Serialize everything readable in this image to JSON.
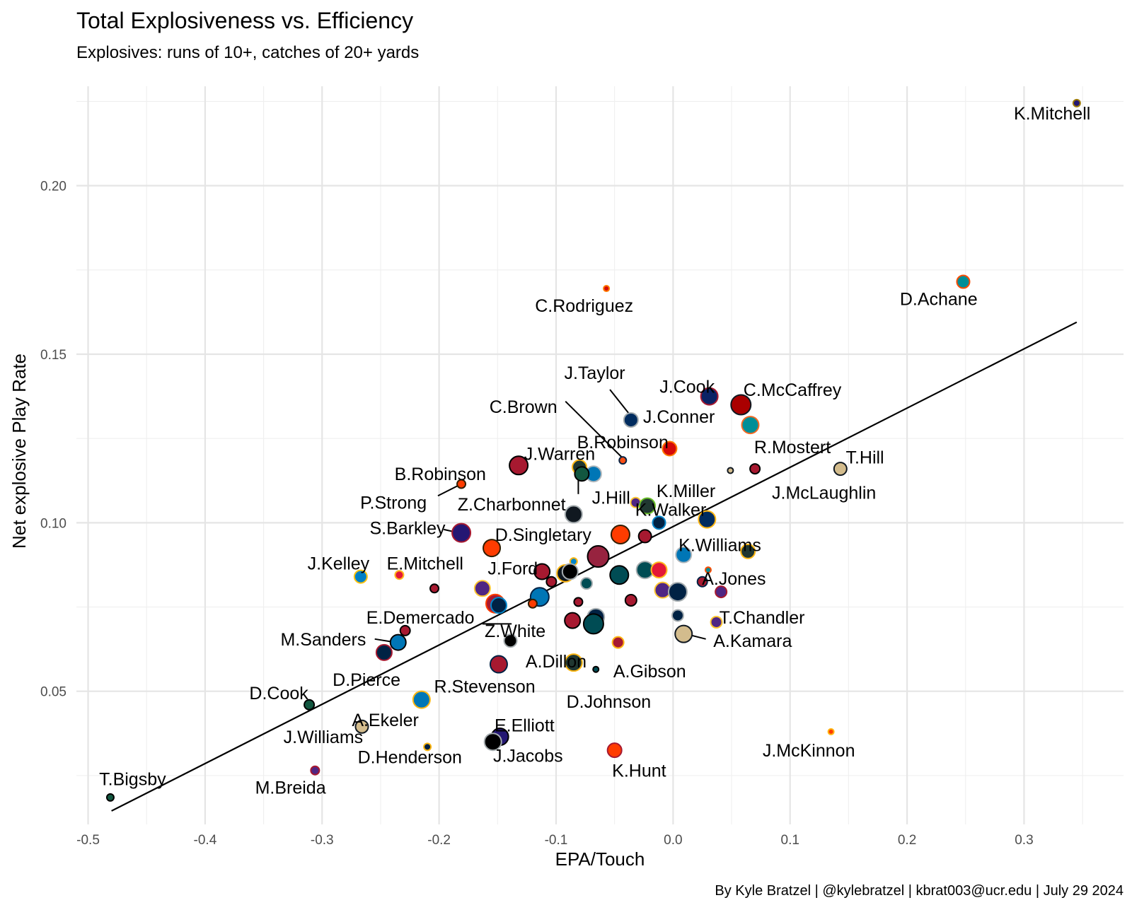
{
  "chart_data": {
    "type": "scatter",
    "title": "Total Explosiveness vs. Efficiency",
    "subtitle": "Explosives: runs of 10+, catches of 20+ yards",
    "xlabel": "EPA/Touch",
    "ylabel": "Net explosive Play Rate",
    "caption": "By Kyle Bratzel | @kylebratzel | kbrat003@ucr.edu | July 29 2024",
    "xlim": [
      -0.51,
      0.385
    ],
    "ylim": [
      0.0105,
      0.2295
    ],
    "x_ticks": [
      -0.5,
      -0.4,
      -0.3,
      -0.2,
      -0.1,
      0.0,
      0.1,
      0.2,
      0.3
    ],
    "x_tick_labels": [
      "-0.5",
      "-0.4",
      "-0.3",
      "-0.2",
      "-0.1",
      "0.0",
      "0.1",
      "0.2",
      "0.3"
    ],
    "y_ticks": [
      0.05,
      0.1,
      0.15,
      0.2
    ],
    "y_tick_labels": [
      "0.05",
      "0.10",
      "0.15",
      "0.20"
    ],
    "grid": true,
    "trend_line": {
      "x": [
        -0.48,
        0.345
      ],
      "y": [
        0.0145,
        0.1595
      ]
    },
    "points": [
      {
        "x": 0.345,
        "y": 0.2245,
        "r": 5,
        "fill": "#241773",
        "stroke": "#9E7C0C",
        "label": "K.Mitchell",
        "lx": 0.324,
        "ly": 0.2215
      },
      {
        "x": 0.248,
        "y": 0.1715,
        "r": 9,
        "fill": "#008E97",
        "stroke": "#FC4C02",
        "label": "D.Achane",
        "lx": 0.227,
        "ly": 0.1665
      },
      {
        "x": -0.057,
        "y": 0.1695,
        "r": 4,
        "fill": "#D50A0A",
        "stroke": "#FF7900",
        "label": "C.Rodriguez",
        "lx": -0.076,
        "ly": 0.1645
      },
      {
        "x": 0.031,
        "y": 0.1375,
        "r": 12,
        "fill": "#0B2265",
        "stroke": "#A71930",
        "label": "J.Cook",
        "lx": 0.012,
        "ly": 0.1405
      },
      {
        "x": 0.058,
        "y": 0.135,
        "r": 14,
        "fill": "#AA0000",
        "stroke": "#101820",
        "label": "C.McCaffrey",
        "lx": 0.102,
        "ly": 0.1395
      },
      {
        "x": 0.066,
        "y": 0.129,
        "r": 12,
        "fill": "#008E97",
        "stroke": "#F26A24",
        "label": "J.Conner",
        "lx": 0.005,
        "ly": 0.1315
      },
      {
        "x": -0.036,
        "y": 0.1305,
        "r": 10,
        "fill": "#002C5F",
        "stroke": "#A2AAAD",
        "label": "J.Taylor",
        "lx": -0.067,
        "ly": 0.1445,
        "line": [
          -0.054,
          0.1395,
          -0.038,
          0.1325
        ]
      },
      {
        "x": -0.043,
        "y": 0.1185,
        "r": 5,
        "fill": "#FB4F14",
        "stroke": "#0A2343",
        "label": "C.Brown",
        "lx": -0.128,
        "ly": 0.1345,
        "line": [
          -0.092,
          0.136,
          -0.044,
          0.1195
        ]
      },
      {
        "x": -0.003,
        "y": 0.122,
        "r": 10,
        "fill": "#D50A0A",
        "stroke": "#FF7900",
        "label": "B.Robinson",
        "lx": -0.043,
        "ly": 0.124
      },
      {
        "x": -0.132,
        "y": 0.117,
        "r": 13,
        "fill": "#A71930",
        "stroke": "#000000",
        "label": "J.Warren",
        "lx": -0.097,
        "ly": 0.1205
      },
      {
        "x": -0.08,
        "y": 0.1165,
        "r": 10,
        "fill": "#203731",
        "stroke": "#FFB612"
      },
      {
        "x": -0.068,
        "y": 0.1145,
        "r": 11,
        "fill": "#0076B6",
        "stroke": "#B0B7BC"
      },
      {
        "x": -0.078,
        "y": 0.1145,
        "r": 10,
        "fill": "#125740",
        "stroke": "#000000",
        "label": "J.Hill",
        "lx": -0.053,
        "ly": 0.1075,
        "line": [
          -0.081,
          0.1085,
          -0.081,
          0.1135
        ]
      },
      {
        "x": -0.181,
        "y": 0.1115,
        "r": 6,
        "fill": "#FF3C00",
        "stroke": "#311D00",
        "label": "B.Robinson",
        "lx": -0.199,
        "ly": 0.1145
      },
      {
        "x": 0.049,
        "y": 0.1155,
        "r": 4,
        "fill": "#D3BC8D",
        "stroke": "#101820",
        "label": "R.Mostert",
        "lx": 0.102,
        "ly": 0.1225
      },
      {
        "x": 0.07,
        "y": 0.116,
        "r": 7,
        "fill": "#A71930",
        "stroke": "#000000"
      },
      {
        "x": 0.143,
        "y": 0.116,
        "r": 9,
        "fill": "#D3BC8D",
        "stroke": "#101820",
        "label": "T.Hill",
        "lx": 0.164,
        "ly": 0.1195
      },
      {
        "x": null,
        "y": null,
        "r": 0,
        "fill": "#000000",
        "stroke": "#000000",
        "label": "P.Strong",
        "lx": -0.239,
        "ly": 0.106,
        "line": [
          -0.201,
          0.108,
          -0.181,
          0.1115
        ]
      },
      {
        "x": null,
        "y": null,
        "r": 0,
        "fill": "#000000",
        "stroke": "#000000",
        "label": "K.Miller",
        "lx": 0.011,
        "ly": 0.1095
      },
      {
        "x": null,
        "y": null,
        "r": 0,
        "fill": "#000000",
        "stroke": "#000000",
        "label": "J.McLaughlin",
        "lx": 0.129,
        "ly": 0.109
      },
      {
        "x": -0.085,
        "y": 0.1025,
        "r": 12,
        "fill": "#101820",
        "stroke": "#A5ACAF",
        "label": "Z.Charbonnet",
        "lx": -0.138,
        "ly": 0.1055
      },
      {
        "x": -0.032,
        "y": 0.106,
        "r": 7,
        "fill": "#4F2683",
        "stroke": "#FFC62F"
      },
      {
        "x": -0.022,
        "y": 0.105,
        "r": 11,
        "fill": "#203731",
        "stroke": "#69BE28",
        "label": "K.Walker",
        "lx": -0.002,
        "ly": 0.104
      },
      {
        "x": -0.012,
        "y": 0.1,
        "r": 9,
        "fill": "#002244",
        "stroke": "#0085CA"
      },
      {
        "x": 0.029,
        "y": 0.101,
        "r": 12,
        "fill": "#002C5F",
        "stroke": "#FFB612"
      },
      {
        "x": -0.181,
        "y": 0.097,
        "r": 13,
        "fill": "#241773",
        "stroke": "#A71930",
        "label": "S.Barkley",
        "lx": -0.227,
        "ly": 0.0985,
        "line": [
          -0.196,
          0.098,
          -0.183,
          0.097
        ]
      },
      {
        "x": -0.045,
        "y": 0.0965,
        "r": 13,
        "fill": "#FF3C00",
        "stroke": "#311D00",
        "label": "D.Singletary",
        "lx": -0.111,
        "ly": 0.0965
      },
      {
        "x": -0.024,
        "y": 0.096,
        "r": 9,
        "fill": "#A71930",
        "stroke": "#000000"
      },
      {
        "x": -0.155,
        "y": 0.0925,
        "r": 12,
        "fill": "#FF3C00",
        "stroke": "#311D00"
      },
      {
        "x": 0.009,
        "y": 0.0905,
        "r": 11,
        "fill": "#0076B6",
        "stroke": "#B0B7BC",
        "label": "K.Williams",
        "lx": 0.04,
        "ly": 0.0935
      },
      {
        "x": 0.064,
        "y": 0.0915,
        "r": 10,
        "fill": "#203731",
        "stroke": "#FFB612"
      },
      {
        "x": -0.064,
        "y": 0.09,
        "r": 15,
        "fill": "#97233F",
        "stroke": "#000000"
      },
      {
        "x": -0.085,
        "y": 0.0885,
        "r": 5,
        "fill": "#0085CA",
        "stroke": "#FFB612"
      },
      {
        "x": -0.267,
        "y": 0.084,
        "r": 9,
        "fill": "#0080C6",
        "stroke": "#FFC20E",
        "label": "J.Kelley",
        "lx": -0.286,
        "ly": 0.088
      },
      {
        "x": -0.234,
        "y": 0.0845,
        "r": 6,
        "fill": "#E31837",
        "stroke": "#FFB81C",
        "label": "E.Mitchell",
        "lx": -0.212,
        "ly": 0.088
      },
      {
        "x": -0.112,
        "y": 0.0855,
        "r": 11,
        "fill": "#A71930",
        "stroke": "#000000",
        "label": "J.Ford",
        "lx": -0.137,
        "ly": 0.0865
      },
      {
        "x": -0.104,
        "y": 0.0825,
        "r": 7,
        "fill": "#A71930",
        "stroke": "#000000"
      },
      {
        "x": -0.092,
        "y": 0.085,
        "r": 12,
        "fill": "#101820",
        "stroke": "#FFB612"
      },
      {
        "x": -0.088,
        "y": 0.0855,
        "r": 11,
        "fill": "#000000",
        "stroke": "#A5ACAF"
      },
      {
        "x": -0.046,
        "y": 0.0845,
        "r": 13,
        "fill": "#004C54",
        "stroke": "#000000"
      },
      {
        "x": -0.024,
        "y": 0.086,
        "r": 12,
        "fill": "#004C54",
        "stroke": "#A5ACAF"
      },
      {
        "x": -0.012,
        "y": 0.086,
        "r": 11,
        "fill": "#E31837",
        "stroke": "#FFB81C"
      },
      {
        "x": 0.03,
        "y": 0.086,
        "r": 4,
        "fill": "#008E97",
        "stroke": "#FC4C02",
        "label": "A.Jones",
        "lx": 0.052,
        "ly": 0.0835
      },
      {
        "x": -0.074,
        "y": 0.082,
        "r": 8,
        "fill": "#004C54",
        "stroke": "#A5ACAF"
      },
      {
        "x": 0.025,
        "y": 0.0825,
        "r": 7,
        "fill": "#A71930",
        "stroke": "#002244"
      },
      {
        "x": -0.204,
        "y": 0.0805,
        "r": 6,
        "fill": "#A71930",
        "stroke": "#000000"
      },
      {
        "x": -0.163,
        "y": 0.0805,
        "r": 11,
        "fill": "#4F2683",
        "stroke": "#FFC62F"
      },
      {
        "x": -0.012,
        "y": 0.0805,
        "r": 4,
        "fill": "#FFB612",
        "stroke": "#101820"
      },
      {
        "x": -0.009,
        "y": 0.08,
        "r": 11,
        "fill": "#4F2683",
        "stroke": "#FFC62F"
      },
      {
        "x": 0.004,
        "y": 0.0795,
        "r": 13,
        "fill": "#002244",
        "stroke": "#A5ACAF"
      },
      {
        "x": 0.041,
        "y": 0.0795,
        "r": 8,
        "fill": "#4F2683",
        "stroke": "#A71930"
      },
      {
        "x": -0.114,
        "y": 0.078,
        "r": 13,
        "fill": "#0076B6",
        "stroke": "#002244"
      },
      {
        "x": -0.152,
        "y": 0.076,
        "r": 13,
        "fill": "#A71930",
        "stroke": "#FF3C00"
      },
      {
        "x": -0.149,
        "y": 0.0755,
        "r": 11,
        "fill": "#002244",
        "stroke": "#0085CA"
      },
      {
        "x": -0.12,
        "y": 0.076,
        "r": 6,
        "fill": "#FF3C00",
        "stroke": "#311D00"
      },
      {
        "x": -0.081,
        "y": 0.0765,
        "r": 6,
        "fill": "#A71930",
        "stroke": "#000000"
      },
      {
        "x": -0.036,
        "y": 0.077,
        "r": 8,
        "fill": "#A71930",
        "stroke": "#000000"
      },
      {
        "x": null,
        "y": null,
        "r": 0,
        "fill": "#000000",
        "stroke": "#000000",
        "label": "E.Demercado",
        "lx": -0.216,
        "ly": 0.072
      },
      {
        "x": null,
        "y": null,
        "r": 0,
        "fill": "#000000",
        "stroke": "#000000",
        "label": "Z.White",
        "lx": -0.135,
        "ly": 0.068,
        "line": [
          -0.163,
          0.07,
          -0.138,
          0.07
        ]
      },
      {
        "x": -0.086,
        "y": 0.071,
        "r": 11,
        "fill": "#A71930",
        "stroke": "#000000"
      },
      {
        "x": -0.066,
        "y": 0.072,
        "r": 12,
        "fill": "#002244",
        "stroke": "#A5ACAF"
      },
      {
        "x": -0.068,
        "y": 0.07,
        "r": 14,
        "fill": "#004C54",
        "stroke": "#000000"
      },
      {
        "x": 0.004,
        "y": 0.0725,
        "r": 8,
        "fill": "#002244",
        "stroke": "#A5ACAF"
      },
      {
        "x": 0.037,
        "y": 0.0705,
        "r": 8,
        "fill": "#4F2683",
        "stroke": "#FFC62F",
        "label": "T.Chandler",
        "lx": 0.076,
        "ly": 0.072
      },
      {
        "x": -0.229,
        "y": 0.068,
        "r": 7,
        "fill": "#A71930",
        "stroke": "#000000"
      },
      {
        "x": -0.235,
        "y": 0.0645,
        "r": 11,
        "fill": "#0076B6",
        "stroke": "#000000",
        "label": "M.Sanders",
        "lx": -0.299,
        "ly": 0.0655,
        "line": [
          -0.255,
          0.0655,
          -0.237,
          0.0645
        ]
      },
      {
        "x": -0.139,
        "y": 0.065,
        "r": 9,
        "fill": "#000000",
        "stroke": "#A5ACAF"
      },
      {
        "x": -0.047,
        "y": 0.0645,
        "r": 8,
        "fill": "#A71930",
        "stroke": "#FFB612"
      },
      {
        "x": 0.009,
        "y": 0.067,
        "r": 12,
        "fill": "#D3BC8D",
        "stroke": "#101820",
        "label": "A.Kamara",
        "lx": 0.068,
        "ly": 0.065,
        "line": [
          0.011,
          0.067,
          0.028,
          0.0655
        ]
      },
      {
        "x": -0.247,
        "y": 0.0615,
        "r": 11,
        "fill": "#002244",
        "stroke": "#A71930"
      },
      {
        "x": -0.149,
        "y": 0.058,
        "r": 12,
        "fill": "#A71930",
        "stroke": "#002244"
      },
      {
        "x": -0.085,
        "y": 0.0585,
        "r": 12,
        "fill": "#203731",
        "stroke": "#FFB612"
      },
      {
        "x": -0.066,
        "y": 0.0565,
        "r": 4,
        "fill": "#004C54",
        "stroke": "#000000"
      },
      {
        "x": null,
        "y": null,
        "r": 0,
        "fill": "#000000",
        "stroke": "#000000",
        "label": "A.Dillon",
        "lx": -0.1,
        "ly": 0.059
      },
      {
        "x": null,
        "y": null,
        "r": 0,
        "fill": "#000000",
        "stroke": "#000000",
        "label": "A.Gibson",
        "lx": -0.02,
        "ly": 0.056
      },
      {
        "x": null,
        "y": null,
        "r": 0,
        "fill": "#000000",
        "stroke": "#000000",
        "label": "D.Pierce",
        "lx": -0.262,
        "ly": 0.0535
      },
      {
        "x": null,
        "y": null,
        "r": 0,
        "fill": "#000000",
        "stroke": "#000000",
        "label": "D.Johnson",
        "lx": -0.055,
        "ly": 0.047
      },
      {
        "x": -0.311,
        "y": 0.046,
        "r": 7,
        "fill": "#125740",
        "stroke": "#000000",
        "label": "D.Cook",
        "lx": -0.337,
        "ly": 0.0495
      },
      {
        "x": -0.215,
        "y": 0.0475,
        "r": 12,
        "fill": "#0076B6",
        "stroke": "#FFB612",
        "label": "R.Stevenson",
        "lx": -0.161,
        "ly": 0.0515
      },
      {
        "x": -0.266,
        "y": 0.0395,
        "r": 9,
        "fill": "#D3BC8D",
        "stroke": "#101820",
        "label": "A.Ekeler",
        "lx": -0.246,
        "ly": 0.0415
      },
      {
        "x": -0.148,
        "y": 0.0365,
        "r": 12,
        "fill": "#241773",
        "stroke": "#000000",
        "label": "E.Elliott",
        "lx": -0.127,
        "ly": 0.04
      },
      {
        "x": -0.154,
        "y": 0.035,
        "r": 12,
        "fill": "#000000",
        "stroke": "#A5ACAF"
      },
      {
        "x": -0.21,
        "y": 0.0335,
        "r": 5,
        "fill": "#002244",
        "stroke": "#FFB612"
      },
      {
        "x": -0.05,
        "y": 0.0325,
        "r": 10,
        "fill": "#FF3C00",
        "stroke": "#A71930",
        "label": "K.Hunt",
        "lx": -0.029,
        "ly": 0.0265
      },
      {
        "x": 0.135,
        "y": 0.038,
        "r": 4,
        "fill": "#FF3C00",
        "stroke": "#FFB612",
        "label": "J.McKinnon",
        "lx": 0.116,
        "ly": 0.0325
      },
      {
        "x": null,
        "y": null,
        "r": 0,
        "fill": "#000000",
        "stroke": "#000000",
        "label": "J.Williams",
        "lx": -0.299,
        "ly": 0.0365
      },
      {
        "x": null,
        "y": null,
        "r": 0,
        "fill": "#000000",
        "stroke": "#000000",
        "label": "D.Henderson",
        "lx": -0.225,
        "ly": 0.0305
      },
      {
        "x": null,
        "y": null,
        "r": 0,
        "fill": "#000000",
        "stroke": "#000000",
        "label": "J.Jacobs",
        "lx": -0.124,
        "ly": 0.031
      },
      {
        "x": -0.306,
        "y": 0.0265,
        "r": 6,
        "fill": "#4F2683",
        "stroke": "#A71930",
        "label": "M.Breida",
        "lx": -0.327,
        "ly": 0.0215
      },
      {
        "x": -0.481,
        "y": 0.0185,
        "r": 5,
        "fill": "#125740",
        "stroke": "#000000",
        "label": "T.Bigsby",
        "lx": -0.462,
        "ly": 0.024
      }
    ]
  }
}
